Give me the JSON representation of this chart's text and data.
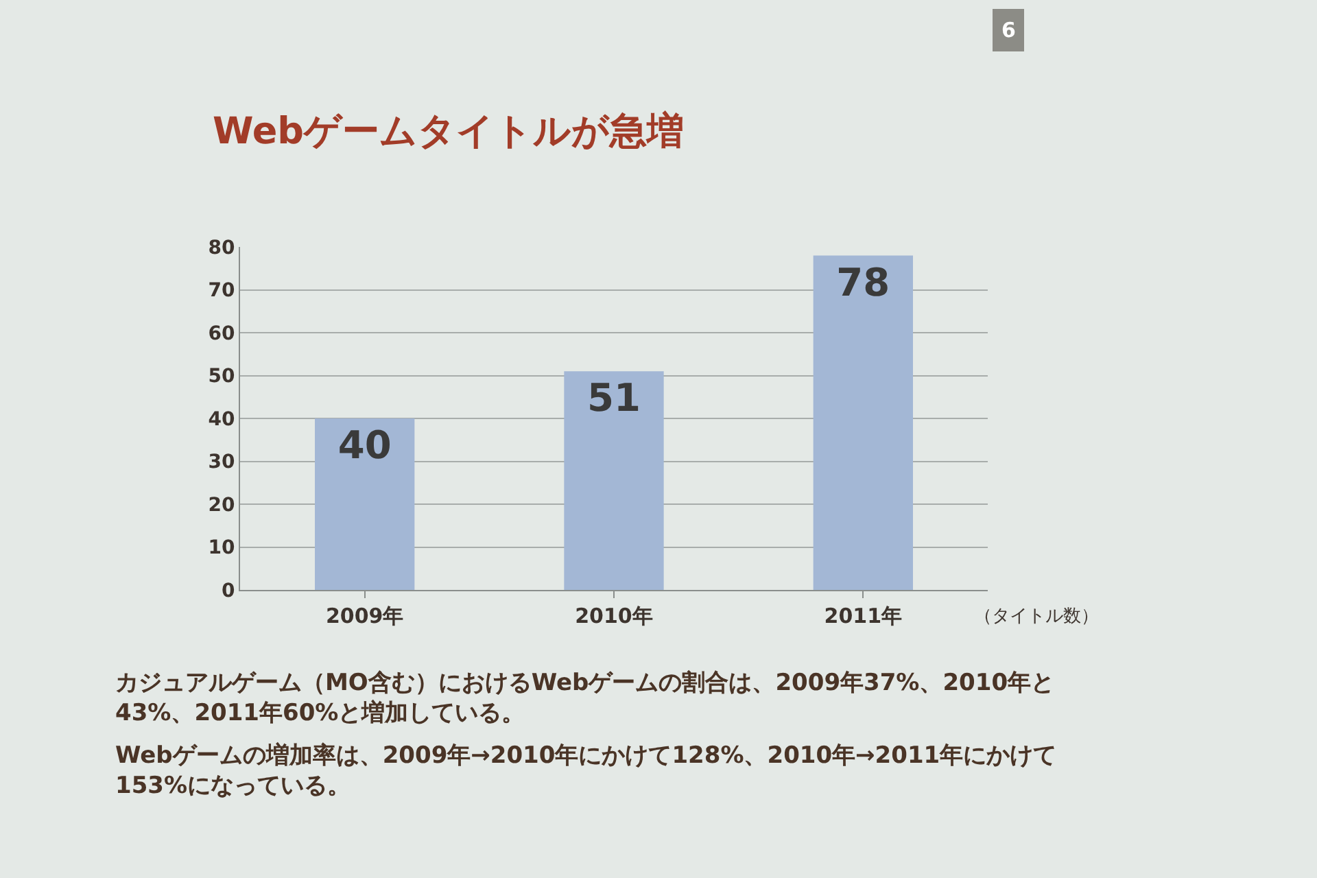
{
  "chart_data": {
    "type": "bar",
    "title": "Webゲームタイトルが急増",
    "categories": [
      "2009年",
      "2010年",
      "2011年"
    ],
    "values": [
      40,
      51,
      78
    ],
    "color": "#a3b7d5",
    "data_labels": true,
    "ylim": [
      0,
      80
    ],
    "yticks": [
      0,
      10,
      20,
      30,
      40,
      50,
      60,
      70,
      80
    ],
    "grid": "y",
    "annotations": [
      "6",
      "（タイトル数）",
      "カジュアルゲーム（MO含む）におけるWebゲームの割合は、2009年37%、2010年と43%、2011年60%と増加している。",
      "Webゲームの増加率は、2009年→2010年にかけて128%、2010年→2011年にかけて153%になっている。"
    ]
  }
}
